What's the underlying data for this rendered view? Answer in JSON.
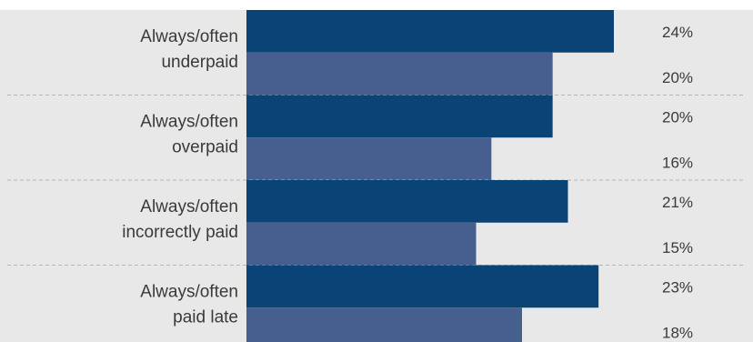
{
  "chart_data": {
    "type": "bar",
    "orientation": "horizontal",
    "categories": [
      [
        "Always/often",
        "underpaid"
      ],
      [
        "Always/often",
        "overpaid"
      ],
      [
        "Always/often",
        "incorrectly paid"
      ],
      [
        "Always/often",
        "paid late"
      ]
    ],
    "series": [
      {
        "values": [
          24,
          20,
          21,
          23
        ],
        "color": "#0a4477"
      },
      {
        "values": [
          20,
          16,
          15,
          18
        ],
        "color": "#465f8e"
      }
    ],
    "value_labels": [
      [
        "24%",
        "20%"
      ],
      [
        "20%",
        "16%"
      ],
      [
        "21%",
        "15%"
      ],
      [
        "23%",
        "18%"
      ]
    ],
    "value_suffix": "%",
    "grid": false,
    "legend": "none"
  },
  "colors": {
    "background_band": "#e8e8e8",
    "separator": "#b4b4b4",
    "text": "#3a3a3a"
  }
}
